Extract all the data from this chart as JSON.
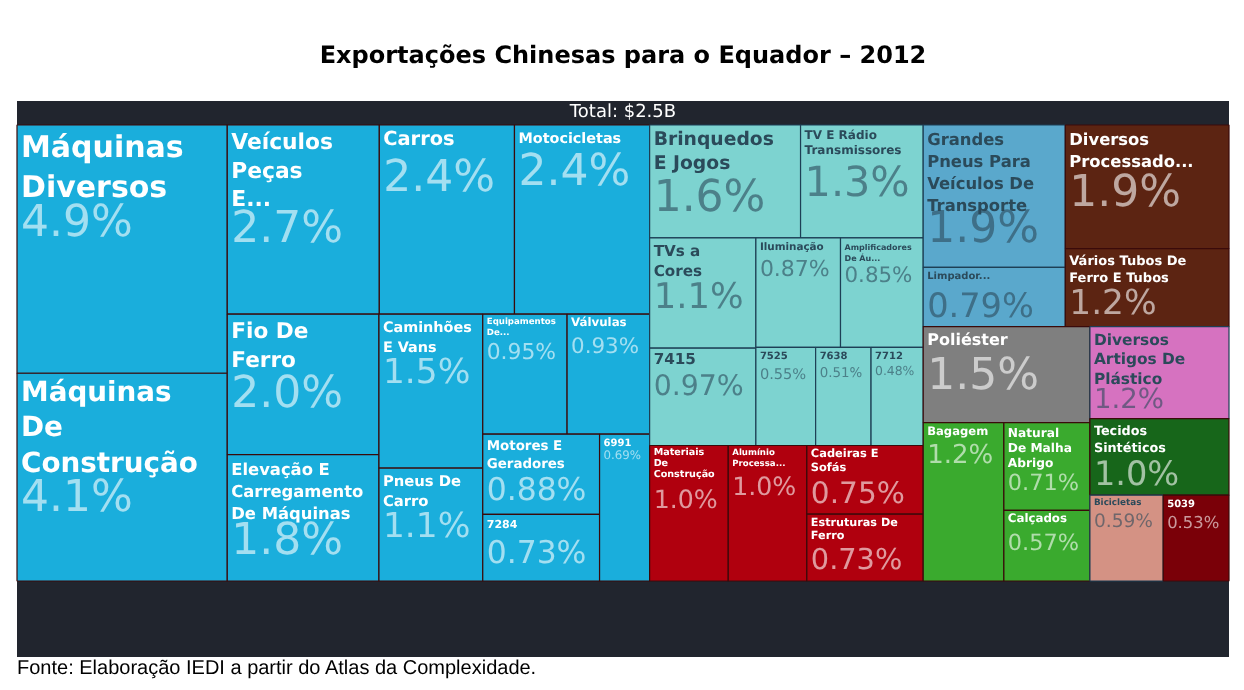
{
  "chart_data": {
    "type": "other",
    "title": "Exportações Chinesas para o Equador – 2012",
    "subtitle": "Total: $2.5B",
    "annotations": [
      "Fonte: Elaboração IEDI a partir do Atlas da Complexidade."
    ],
    "categories": [
      "Máquinas Diversos",
      "Máquinas De Construção",
      "Veículos Peças E...",
      "Carros",
      "Motocicletas",
      "Fio De Ferro",
      "Elevação E Carregamento De Máquinas",
      "Caminhões E Vans",
      "Pneus De Carro",
      "Equipamentos De...",
      "Válvulas",
      "Motores E Geradores",
      "7284",
      "6991",
      "Brinquedos E Jogos",
      "TV E Rádio Transmissores",
      "TVs a Cores",
      "7415",
      "Iluminação",
      "Amplificadores De Áu...",
      "7525",
      "7638",
      "7712",
      "Materiais De Construção",
      "Alumínio Processa...",
      "Cadeiras E Sofás",
      "Estruturas De Ferro",
      "Grandes Pneus Para Veículos De Transporte",
      "Limpador...",
      "Diversos Processado...",
      "Vários Tubos De Ferro E Tubos",
      "Poliéster",
      "Bagagem",
      "Natural De Malha Abrigo",
      "Calçados",
      "Diversos Artigos De Plástico",
      "Tecidos Sintéticos",
      "Bicicletas",
      "5039"
    ],
    "values": [
      4.9,
      4.1,
      2.7,
      2.4,
      2.4,
      2.0,
      1.8,
      1.5,
      1.1,
      0.95,
      0.93,
      0.88,
      0.73,
      0.69,
      1.6,
      1.3,
      1.1,
      0.97,
      0.87,
      0.85,
      0.55,
      0.51,
      0.48,
      1.0,
      1.0,
      0.75,
      0.73,
      1.9,
      0.79,
      1.9,
      1.2,
      1.5,
      1.2,
      0.71,
      0.57,
      1.2,
      1.0,
      0.59,
      0.53
    ],
    "value_labels": [
      "4.9%",
      "4.1%",
      "2.7%",
      "2.4%",
      "2.4%",
      "2.0%",
      "1.8%",
      "1.5%",
      "1.1%",
      "0.95%",
      "0.93%",
      "0.88%",
      "0.73%",
      "0.69%",
      "1.6%",
      "1.3%",
      "1.1%",
      "0.97%",
      "0.87%",
      "0.85%",
      "0.55%",
      "0.51%",
      "0.48%",
      "1.0%",
      "1.0%",
      "0.75%",
      "0.73%",
      "1.9%",
      "0.79%",
      "1.9%",
      "1.2%",
      "1.5%",
      "1.2%",
      "0.71%",
      "0.57%",
      "1.2%",
      "1.0%",
      "0.59%",
      "0.53%"
    ],
    "colors": [
      "#1aaedc",
      "#1aaedc",
      "#1aaedc",
      "#1aaedc",
      "#1aaedc",
      "#1aaedc",
      "#1aaedc",
      "#1aaedc",
      "#1aaedc",
      "#1aaedc",
      "#1aaedc",
      "#1aaedc",
      "#1aaedc",
      "#1aaedc",
      "#7dd3d0",
      "#7dd3d0",
      "#7dd3d0",
      "#7dd3d0",
      "#7dd3d0",
      "#7dd3d0",
      "#7dd3d0",
      "#7dd3d0",
      "#7dd3d0",
      "#b0000e",
      "#b0000e",
      "#b0000e",
      "#b0000e",
      "#5aa8cc",
      "#5aa8cc",
      "#5c2412",
      "#5c2412",
      "#7f7f7f",
      "#3aaa2e",
      "#3aaa2e",
      "#3aaa2e",
      "#d672c0",
      "#17661a",
      "#d49284",
      "#7a0008"
    ]
  }
}
